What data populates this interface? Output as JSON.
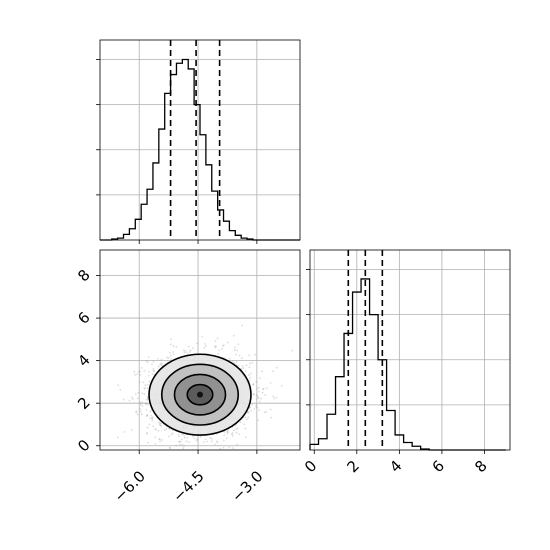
{
  "chart_data": [
    {
      "panel": "top-left",
      "type": "histogram",
      "variable_index": 0,
      "title": "",
      "xlabel": "",
      "ylabel": "",
      "xlim": [
        -7.0,
        -1.9
      ],
      "xticks": [
        -6.0,
        -4.5,
        -3.0
      ],
      "yticks_shown_unlabeled": true,
      "ylim": [
        0,
        1.0
      ],
      "grid": true,
      "bins_start": -7.0,
      "bin_width": 0.15,
      "values": [
        0.0,
        0.0,
        0.005,
        0.01,
        0.03,
        0.06,
        0.11,
        0.19,
        0.27,
        0.41,
        0.59,
        0.78,
        0.88,
        0.94,
        0.96,
        0.91,
        0.72,
        0.56,
        0.4,
        0.26,
        0.16,
        0.1,
        0.05,
        0.025,
        0.01,
        0.005,
        0.0,
        0.0,
        0.0,
        0.0,
        0.0,
        0.0,
        0.0,
        0.0
      ],
      "quantile_lines": [
        -5.2,
        -4.55,
        -3.95
      ],
      "line_style": "dashed"
    },
    {
      "panel": "bottom-left",
      "type": "scatter-density",
      "title": "",
      "xlabel": "",
      "ylabel": "",
      "xlim": [
        -7.0,
        -1.9
      ],
      "ylim": [
        -0.2,
        9.2
      ],
      "xticks": [
        -6.0,
        -4.5,
        -3.0
      ],
      "xtick_labels": [
        "−6.0",
        "−4.5",
        "−3.0"
      ],
      "yticks": [
        0,
        2,
        4,
        6,
        8
      ],
      "ytick_labels": [
        "0",
        "2",
        "4",
        "6",
        "8"
      ],
      "grid": true,
      "center": {
        "x": -4.45,
        "y": 2.4
      },
      "spread": {
        "x": 0.65,
        "y": 0.95
      },
      "contour_levels_sigma": [
        0.5,
        1.0,
        1.5,
        2.0
      ],
      "points_color": "#9a9a9a",
      "contour_color": "#000000"
    },
    {
      "panel": "bottom-right",
      "type": "histogram",
      "variable_index": 1,
      "title": "",
      "xlabel": "",
      "ylabel": "",
      "xlim": [
        -0.2,
        9.2
      ],
      "xticks": [
        0,
        2,
        4,
        6,
        8
      ],
      "xtick_labels": [
        "0",
        "2",
        "4",
        "6",
        "8"
      ],
      "yticks_shown_unlabeled": true,
      "ylim": [
        0,
        1.0
      ],
      "grid": true,
      "bins_start": -0.2,
      "bin_width": 0.4,
      "values": [
        0.03,
        0.06,
        0.19,
        0.39,
        0.62,
        0.84,
        0.91,
        0.72,
        0.48,
        0.21,
        0.08,
        0.04,
        0.02,
        0.005,
        0.0,
        0.0,
        0.0,
        0.0,
        0.0,
        0.0,
        0.0,
        0.0,
        0.0
      ],
      "quantile_lines": [
        1.6,
        2.4,
        3.2
      ],
      "line_style": "dashed"
    }
  ],
  "colors": {
    "grid": "#b0b0b0",
    "axes": "#000000",
    "hist": "#000000"
  }
}
